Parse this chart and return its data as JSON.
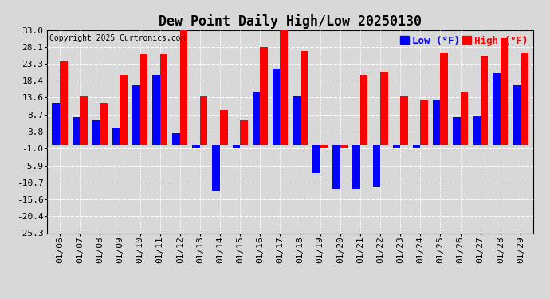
{
  "title": "Dew Point Daily High/Low 20250130",
  "copyright": "Copyright 2025 Curtronics.com",
  "legend_low": "Low (°F)",
  "legend_high": "High (°F)",
  "dates": [
    "01/06",
    "01/07",
    "01/08",
    "01/09",
    "01/10",
    "01/11",
    "01/12",
    "01/13",
    "01/14",
    "01/15",
    "01/16",
    "01/17",
    "01/18",
    "01/19",
    "01/20",
    "01/21",
    "01/22",
    "01/23",
    "01/24",
    "01/25",
    "01/26",
    "01/27",
    "01/28",
    "01/29"
  ],
  "high": [
    24.0,
    14.0,
    12.0,
    20.0,
    26.0,
    26.0,
    33.0,
    14.0,
    10.0,
    7.0,
    28.0,
    33.0,
    27.0,
    -1.0,
    -1.0,
    20.0,
    21.0,
    14.0,
    13.0,
    26.5,
    15.0,
    25.5,
    30.5,
    26.5
  ],
  "low": [
    12.0,
    8.0,
    7.0,
    5.0,
    17.0,
    20.0,
    3.5,
    -1.0,
    -13.0,
    -1.0,
    15.0,
    22.0,
    14.0,
    -8.0,
    -12.5,
    -12.5,
    -12.0,
    -1.0,
    -1.0,
    13.0,
    8.0,
    8.5,
    20.5,
    17.0
  ],
  "high_color": "#ff0000",
  "low_color": "#0000ff",
  "bg_color": "#d8d8d8",
  "grid_color": "#ffffff",
  "yticks": [
    33.0,
    28.1,
    23.3,
    18.4,
    13.6,
    8.7,
    3.8,
    -1.0,
    -5.9,
    -10.7,
    -15.6,
    -20.4,
    -25.3
  ],
  "ylim": [
    -25.3,
    33.0
  ],
  "title_fontsize": 12,
  "tick_fontsize": 8,
  "bar_width": 0.38
}
